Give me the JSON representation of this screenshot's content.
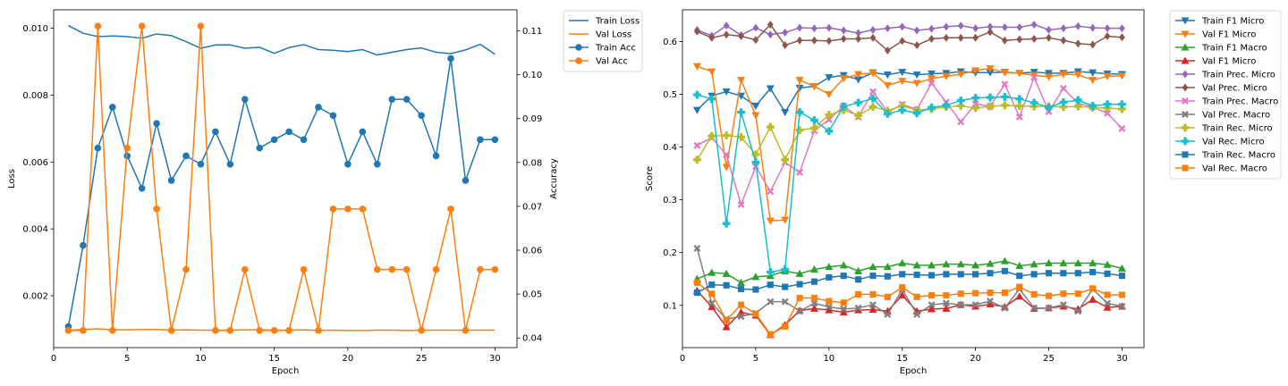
{
  "chart_data": [
    {
      "type": "line",
      "xlabel": "Epoch",
      "ylabel": "Loss",
      "ylabel_right": "Accuracy",
      "xlim": [
        0,
        31.5
      ],
      "ylim": [
        0.00045,
        0.01055
      ],
      "ylim_right": [
        0.0378,
        0.1148
      ],
      "xticks": [
        0,
        5,
        10,
        15,
        20,
        25,
        30
      ],
      "yticks": [
        0.002,
        0.004,
        0.006,
        0.008,
        0.01
      ],
      "yticks_right": [
        0.04,
        0.05,
        0.06,
        0.07,
        0.08,
        0.09,
        0.1,
        0.11
      ],
      "legend_position": "outside upper right",
      "x": [
        1,
        2,
        3,
        4,
        5,
        6,
        7,
        8,
        9,
        10,
        11,
        12,
        13,
        14,
        15,
        16,
        17,
        18,
        19,
        20,
        21,
        22,
        23,
        24,
        25,
        26,
        27,
        28,
        29,
        30
      ],
      "series": [
        {
          "name": "Train Loss",
          "axis": "left",
          "color": "#1f77b4",
          "marker": "none",
          "values": [
            0.01008,
            0.00985,
            0.00975,
            0.00977,
            0.00975,
            0.0097,
            0.00983,
            0.00978,
            0.0096,
            0.0094,
            0.0095,
            0.0095,
            0.0094,
            0.00943,
            0.00925,
            0.00942,
            0.00951,
            0.00936,
            0.00934,
            0.0093,
            0.00936,
            0.0092,
            0.00928,
            0.00936,
            0.00941,
            0.00928,
            0.00924,
            0.00935,
            0.00952,
            0.00922
          ]
        },
        {
          "name": "Val Loss",
          "axis": "left",
          "color": "#ff7f0e",
          "marker": "none",
          "values": [
            0.00097,
            0.00099,
            0.00101,
            0.00098,
            0.00098,
            0.00099,
            0.00099,
            0.00097,
            0.00098,
            0.00097,
            0.00097,
            0.00097,
            0.00098,
            0.00098,
            0.00097,
            0.00097,
            0.00098,
            0.00096,
            0.00097,
            0.00096,
            0.00096,
            0.00097,
            0.00097,
            0.00096,
            0.00097,
            0.00097,
            0.00097,
            0.00097,
            0.00097,
            0.00097
          ]
        },
        {
          "name": "Train Acc",
          "axis": "right",
          "color": "#1f77b4",
          "marker": "circle",
          "values": [
            0.0426,
            0.0611,
            0.0833,
            0.0926,
            0.0815,
            0.0741,
            0.0889,
            0.0759,
            0.0815,
            0.0796,
            0.087,
            0.0796,
            0.0944,
            0.0833,
            0.0852,
            0.087,
            0.0852,
            0.0926,
            0.0907,
            0.0796,
            0.087,
            0.0796,
            0.0944,
            0.0944,
            0.0907,
            0.0815,
            0.1037,
            0.0759,
            0.0852,
            0.0852
          ]
        },
        {
          "name": "Val Acc",
          "axis": "right",
          "color": "#ff7f0e",
          "marker": "circle",
          "values": [
            0.0417,
            0.0417,
            0.1111,
            0.0417,
            0.0833,
            0.1111,
            0.0694,
            0.0417,
            0.0556,
            0.1111,
            0.0417,
            0.0417,
            0.0556,
            0.0417,
            0.0417,
            0.0417,
            0.0556,
            0.0417,
            0.0694,
            0.0694,
            0.0694,
            0.0556,
            0.0556,
            0.0556,
            0.0417,
            0.0556,
            0.0694,
            0.0417,
            0.0556,
            0.0556
          ]
        }
      ]
    },
    {
      "type": "line",
      "xlabel": "Epoch",
      "ylabel": "Score",
      "xlim": [
        0,
        31.5
      ],
      "ylim": [
        0.02,
        0.66
      ],
      "xticks": [
        0,
        5,
        10,
        15,
        20,
        25,
        30
      ],
      "yticks": [
        0.1,
        0.2,
        0.3,
        0.4,
        0.5,
        0.6
      ],
      "legend_position": "outside upper right",
      "x": [
        1,
        2,
        3,
        4,
        5,
        6,
        7,
        8,
        9,
        10,
        11,
        12,
        13,
        14,
        15,
        16,
        17,
        18,
        19,
        20,
        21,
        22,
        23,
        24,
        25,
        26,
        27,
        28,
        29,
        30
      ],
      "series": [
        {
          "name": "Train F1 Micro",
          "color": "#1f77b4",
          "marker": "tri-down",
          "values": [
            0.47,
            0.497,
            0.505,
            0.497,
            0.478,
            0.511,
            0.466,
            0.512,
            0.515,
            0.532,
            0.536,
            0.528,
            0.541,
            0.537,
            0.542,
            0.537,
            0.539,
            0.54,
            0.543,
            0.541,
            0.541,
            0.542,
            0.54,
            0.542,
            0.54,
            0.54,
            0.543,
            0.541,
            0.539,
            0.538
          ]
        },
        {
          "name": "Val F1 Micro",
          "color": "#ff7f0e",
          "marker": "tri-down",
          "values": [
            0.553,
            0.543,
            0.362,
            0.527,
            0.46,
            0.26,
            0.262,
            0.527,
            0.515,
            0.5,
            0.53,
            0.538,
            0.54,
            0.517,
            0.525,
            0.521,
            0.53,
            0.534,
            0.538,
            0.545,
            0.549,
            0.541,
            0.54,
            0.536,
            0.533,
            0.538,
            0.537,
            0.527,
            0.534,
            0.535
          ]
        },
        {
          "name": "Train F1 Macro",
          "color": "#2ca02c",
          "marker": "tri-up",
          "values": [
            0.15,
            0.162,
            0.16,
            0.143,
            0.154,
            0.156,
            0.165,
            0.16,
            0.168,
            0.173,
            0.176,
            0.165,
            0.173,
            0.173,
            0.18,
            0.176,
            0.176,
            0.178,
            0.178,
            0.176,
            0.179,
            0.184,
            0.175,
            0.178,
            0.18,
            0.18,
            0.18,
            0.18,
            0.177,
            0.17
          ]
        },
        {
          "name": "Val F1 Micro",
          "color": "#d62728",
          "marker": "tri-up",
          "values": [
            0.128,
            0.097,
            0.059,
            0.087,
            0.081,
            0.044,
            0.063,
            0.09,
            0.094,
            0.091,
            0.087,
            0.091,
            0.092,
            0.089,
            0.119,
            0.089,
            0.093,
            0.094,
            0.101,
            0.098,
            0.102,
            0.097,
            0.117,
            0.094,
            0.095,
            0.098,
            0.093,
            0.111,
            0.096,
            0.098
          ]
        },
        {
          "name": "Train Prec. Micro",
          "color": "#9467bd",
          "marker": "diamond",
          "values": [
            0.622,
            0.611,
            0.63,
            0.612,
            0.626,
            0.613,
            0.617,
            0.626,
            0.625,
            0.626,
            0.621,
            0.616,
            0.622,
            0.625,
            0.628,
            0.621,
            0.624,
            0.628,
            0.63,
            0.625,
            0.628,
            0.627,
            0.627,
            0.632,
            0.622,
            0.625,
            0.629,
            0.626,
            0.625,
            0.625
          ]
        },
        {
          "name": "Val Prec. Micro",
          "color": "#8c564b",
          "marker": "diamond",
          "values": [
            0.619,
            0.607,
            0.613,
            0.61,
            0.603,
            0.632,
            0.593,
            0.602,
            0.602,
            0.601,
            0.605,
            0.605,
            0.607,
            0.583,
            0.601,
            0.593,
            0.605,
            0.607,
            0.607,
            0.607,
            0.618,
            0.602,
            0.604,
            0.605,
            0.607,
            0.602,
            0.596,
            0.594,
            0.61,
            0.608
          ]
        },
        {
          "name": "Train Prec. Macro",
          "color": "#e377c2",
          "marker": "x",
          "values": [
            0.403,
            0.418,
            0.385,
            0.291,
            0.363,
            0.316,
            0.371,
            0.352,
            0.431,
            0.452,
            0.478,
            0.457,
            0.505,
            0.466,
            0.481,
            0.471,
            0.521,
            0.485,
            0.448,
            0.482,
            0.477,
            0.519,
            0.457,
            0.532,
            0.467,
            0.511,
            0.483,
            0.476,
            0.464,
            0.435
          ]
        },
        {
          "name": "Val Prec. Macro",
          "color": "#7f7f7f",
          "marker": "x",
          "values": [
            0.208,
            0.104,
            0.074,
            0.079,
            0.085,
            0.107,
            0.107,
            0.089,
            0.104,
            0.097,
            0.093,
            0.095,
            0.101,
            0.083,
            0.13,
            0.083,
            0.101,
            0.104,
            0.101,
            0.101,
            0.108,
            0.095,
            0.131,
            0.095,
            0.095,
            0.101,
            0.089,
            0.131,
            0.104,
            0.098
          ]
        },
        {
          "name": "Train Rec. Micro",
          "color": "#bcbd22",
          "marker": "plus",
          "values": [
            0.376,
            0.421,
            0.422,
            0.419,
            0.386,
            0.438,
            0.376,
            0.432,
            0.436,
            0.461,
            0.47,
            0.46,
            0.476,
            0.469,
            0.478,
            0.47,
            0.472,
            0.476,
            0.478,
            0.474,
            0.477,
            0.479,
            0.478,
            0.477,
            0.477,
            0.476,
            0.477,
            0.475,
            0.474,
            0.472
          ]
        },
        {
          "name": "Val Rec. Micro",
          "color": "#17becf",
          "marker": "plus",
          "values": [
            0.499,
            0.491,
            0.255,
            0.466,
            0.371,
            0.163,
            0.168,
            0.466,
            0.451,
            0.43,
            0.477,
            0.484,
            0.492,
            0.463,
            0.47,
            0.464,
            0.475,
            0.479,
            0.488,
            0.493,
            0.494,
            0.495,
            0.491,
            0.484,
            0.475,
            0.485,
            0.489,
            0.478,
            0.481,
            0.481
          ]
        },
        {
          "name": "Train Rec. Macro",
          "color": "#1f77b4",
          "marker": "square",
          "values": [
            0.124,
            0.139,
            0.138,
            0.131,
            0.13,
            0.139,
            0.135,
            0.14,
            0.145,
            0.153,
            0.156,
            0.149,
            0.156,
            0.155,
            0.159,
            0.158,
            0.157,
            0.159,
            0.159,
            0.159,
            0.161,
            0.165,
            0.156,
            0.159,
            0.161,
            0.161,
            0.161,
            0.163,
            0.16,
            0.156
          ]
        },
        {
          "name": "Val Rec. Macro",
          "color": "#ff7f0e",
          "marker": "square",
          "values": [
            0.143,
            0.122,
            0.072,
            0.101,
            0.084,
            0.045,
            0.06,
            0.114,
            0.114,
            0.108,
            0.105,
            0.121,
            0.121,
            0.116,
            0.134,
            0.116,
            0.119,
            0.119,
            0.122,
            0.123,
            0.124,
            0.124,
            0.135,
            0.121,
            0.118,
            0.122,
            0.122,
            0.132,
            0.12,
            0.12
          ]
        }
      ]
    }
  ]
}
